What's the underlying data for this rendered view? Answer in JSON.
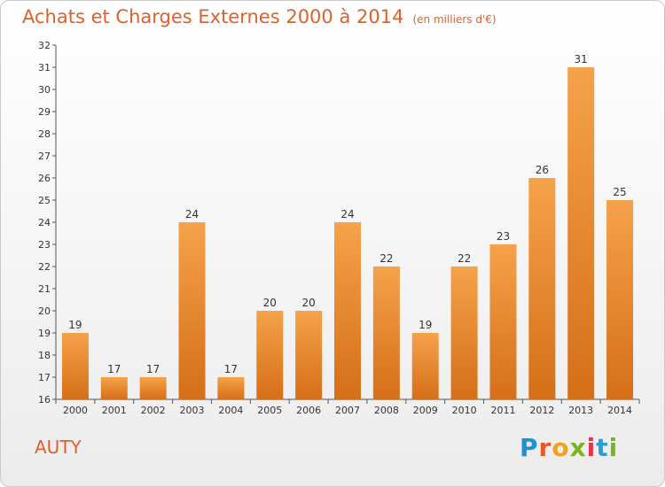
{
  "header": {
    "title": "Achats et Charges Externes 2000 à 2014",
    "subtitle": "(en milliers d'€)"
  },
  "footer": {
    "place": "AUTY",
    "logo": "Proxiti"
  },
  "colors": {
    "bar_top": "#f5a24a",
    "bar_bottom": "#d56f18",
    "accent": "#e0602a"
  },
  "chart_data": {
    "type": "bar",
    "title": "Achats et Charges Externes 2000 à 2014",
    "subtitle": "(en milliers d'€)",
    "xlabel": "",
    "ylabel": "",
    "categories": [
      "2000",
      "2001",
      "2002",
      "2003",
      "2004",
      "2005",
      "2006",
      "2007",
      "2008",
      "2009",
      "2010",
      "2011",
      "2012",
      "2013",
      "2014"
    ],
    "values": [
      19,
      17,
      17,
      24,
      17,
      20,
      20,
      24,
      22,
      19,
      22,
      23,
      26,
      31,
      25
    ],
    "ylim": [
      16,
      32
    ],
    "yticks": [
      16,
      17,
      18,
      19,
      20,
      21,
      22,
      23,
      24,
      25,
      26,
      27,
      28,
      29,
      30,
      31,
      32
    ],
    "grid": false,
    "data_labels": true
  }
}
